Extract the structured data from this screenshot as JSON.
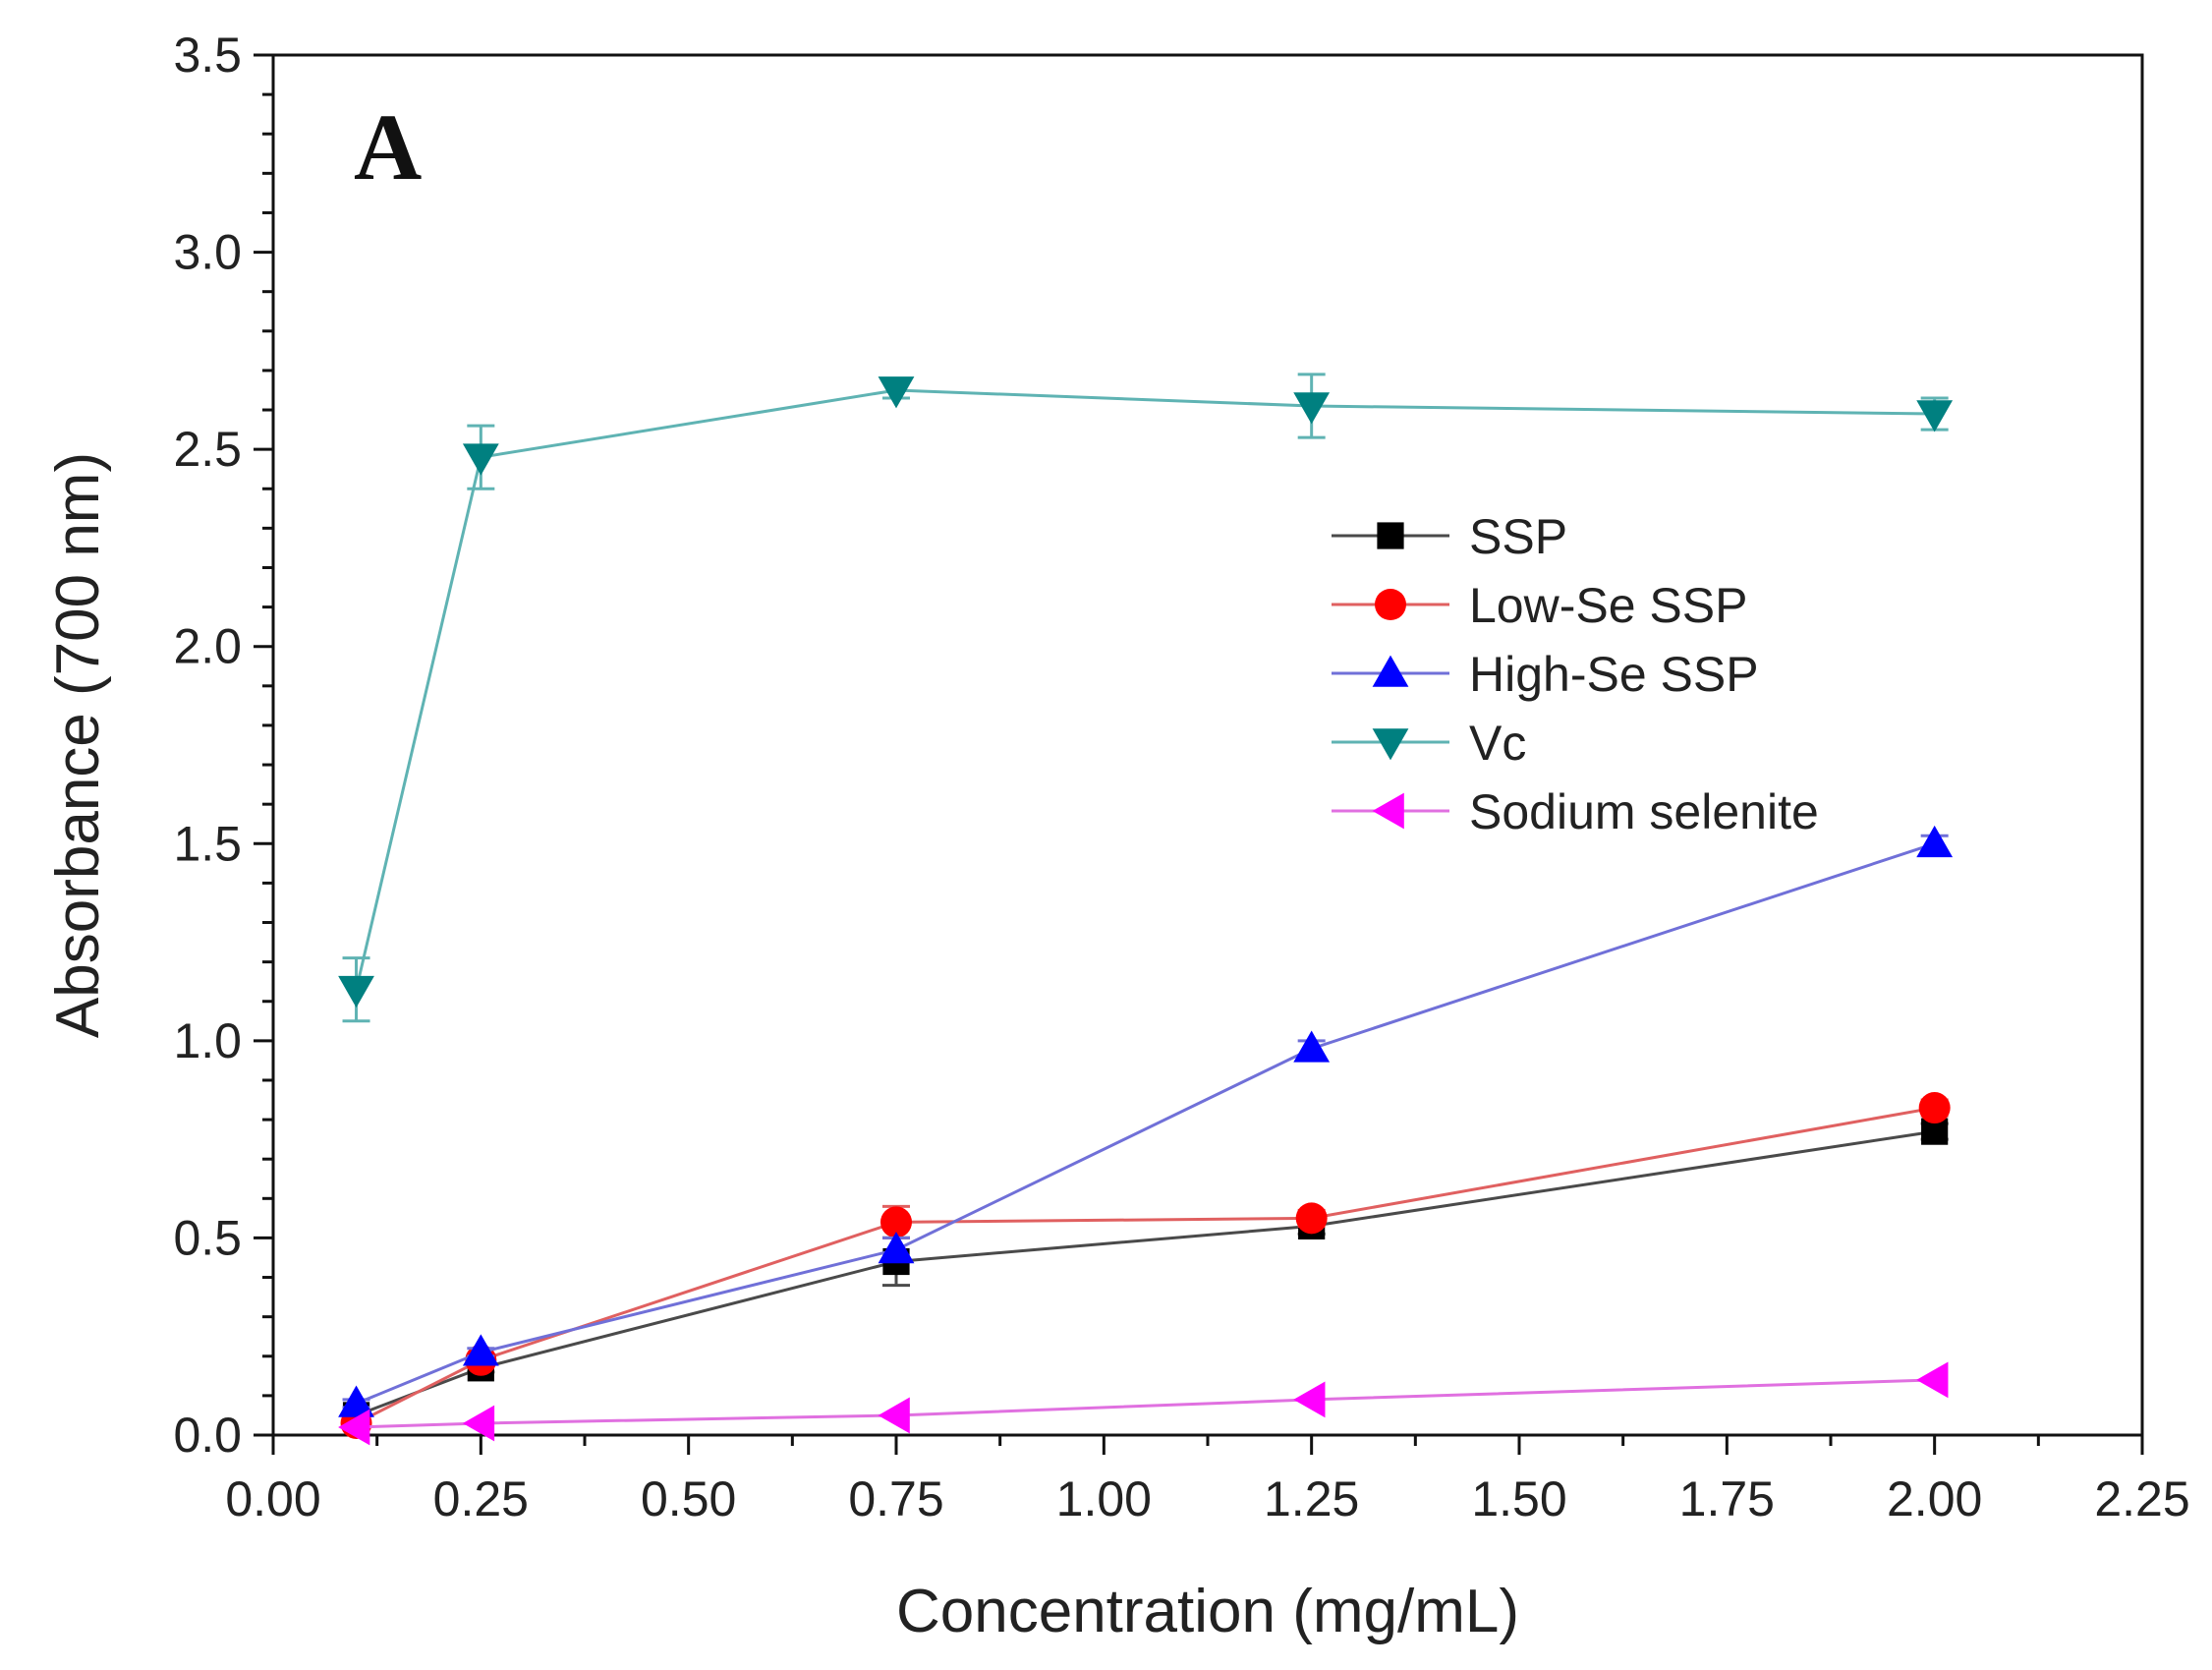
{
  "chart_data": {
    "type": "line",
    "panel_label": "A",
    "xlabel": "Concentration (mg/mL)",
    "ylabel": "Absorbance (700 nm)",
    "xlim": [
      0,
      2.25
    ],
    "ylim": [
      0,
      3.5
    ],
    "x_ticks": [
      "0.00",
      "0.25",
      "0.50",
      "0.75",
      "1.00",
      "1.25",
      "1.50",
      "1.75",
      "2.00",
      "2.25"
    ],
    "y_ticks": [
      "0.0",
      "0.5",
      "1.0",
      "1.5",
      "2.0",
      "2.5",
      "3.0",
      "3.5"
    ],
    "x_tick_values": [
      0,
      0.25,
      0.5,
      0.75,
      1.0,
      1.25,
      1.5,
      1.75,
      2.0,
      2.25
    ],
    "y_tick_values": [
      0,
      0.5,
      1.0,
      1.5,
      2.0,
      2.5,
      3.0,
      3.5
    ],
    "grid": false,
    "legend_position": "center-right",
    "x": [
      0.1,
      0.25,
      0.75,
      1.25,
      2.0
    ],
    "series": [
      {
        "name": "SSP",
        "marker": "square",
        "color": "#000000",
        "line_color": "#4a4a4a",
        "values": [
          0.05,
          0.17,
          0.44,
          0.53,
          0.77
        ],
        "errors": [
          0.01,
          0.01,
          0.06,
          0.02,
          0.02
        ]
      },
      {
        "name": "Low-Se SSP",
        "marker": "circle",
        "color": "#ff0000",
        "line_color": "#e06060",
        "values": [
          0.03,
          0.19,
          0.54,
          0.55,
          0.83
        ],
        "errors": [
          0.01,
          0.01,
          0.04,
          0.02,
          0.02
        ]
      },
      {
        "name": "High-Se SSP",
        "marker": "triangle-up",
        "color": "#0000ff",
        "line_color": "#7070d8",
        "values": [
          0.08,
          0.21,
          0.47,
          0.98,
          1.5
        ],
        "errors": [
          0.01,
          0.01,
          0.03,
          0.02,
          0.02
        ]
      },
      {
        "name": "Vc",
        "marker": "triangle-down",
        "color": "#008080",
        "line_color": "#5fb3b3",
        "values": [
          1.13,
          2.48,
          2.65,
          2.61,
          2.59
        ],
        "errors": [
          0.08,
          0.08,
          0.02,
          0.08,
          0.04
        ]
      },
      {
        "name": "Sodium selenite",
        "marker": "triangle-left",
        "color": "#ff00ff",
        "line_color": "#e070e0",
        "values": [
          0.02,
          0.03,
          0.05,
          0.09,
          0.14
        ],
        "errors": [
          0.0,
          0.0,
          0.0,
          0.0,
          0.0
        ]
      }
    ]
  }
}
